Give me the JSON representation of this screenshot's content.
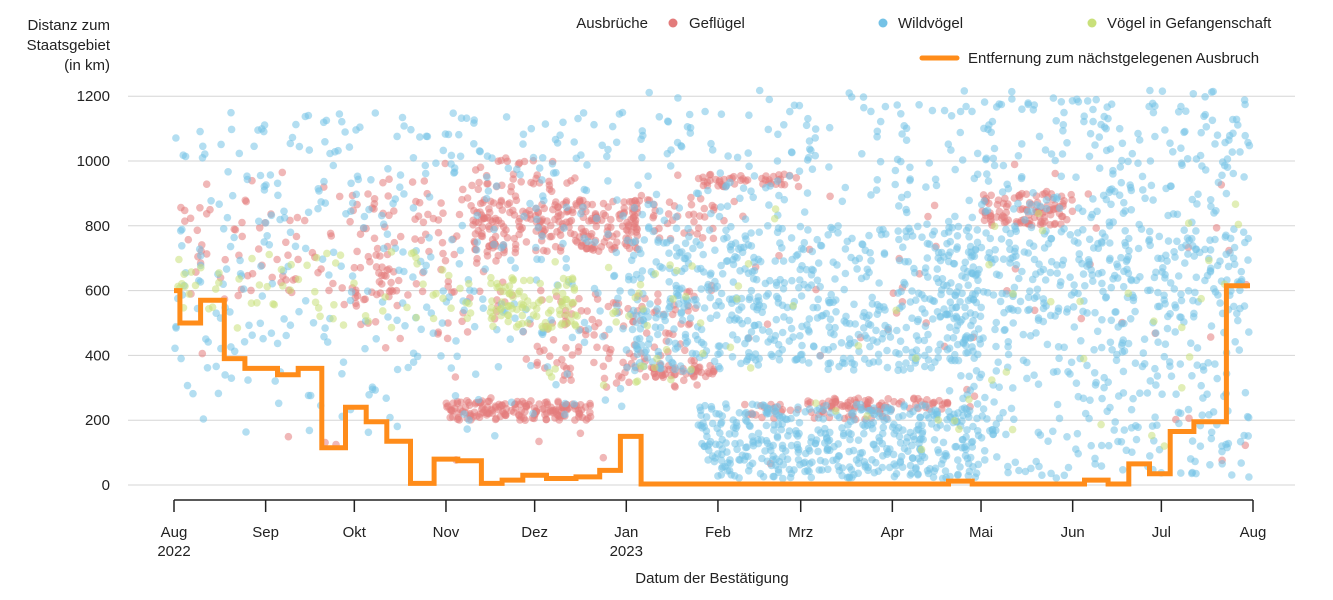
{
  "chart_data": {
    "type": "scatter",
    "ylabel_lines": [
      "Distanz zum",
      "Staatsgebiet",
      "(in km)"
    ],
    "xlabel": "Datum der Bestätigung",
    "ylim": [
      0,
      1250
    ],
    "yticks": [
      0,
      200,
      400,
      600,
      800,
      1000,
      1200
    ],
    "xlim": [
      "2022-08-01",
      "2023-08-01"
    ],
    "xticks": [
      {
        "date": "2022-08-01",
        "label": "Aug",
        "year": "2022"
      },
      {
        "date": "2022-09-01",
        "label": "Sep",
        "year": ""
      },
      {
        "date": "2022-10-01",
        "label": "Okt",
        "year": ""
      },
      {
        "date": "2022-11-01",
        "label": "Nov",
        "year": ""
      },
      {
        "date": "2022-12-01",
        "label": "Dez",
        "year": ""
      },
      {
        "date": "2023-01-01",
        "label": "Jan",
        "year": "2023"
      },
      {
        "date": "2023-02-01",
        "label": "Feb",
        "year": ""
      },
      {
        "date": "2023-03-01",
        "label": "Mrz",
        "year": ""
      },
      {
        "date": "2023-04-01",
        "label": "Apr",
        "year": ""
      },
      {
        "date": "2023-05-01",
        "label": "Mai",
        "year": ""
      },
      {
        "date": "2023-06-01",
        "label": "Jun",
        "year": ""
      },
      {
        "date": "2023-07-01",
        "label": "Jul",
        "year": ""
      },
      {
        "date": "2023-08-01",
        "label": "Aug",
        "year": ""
      }
    ],
    "grid": "horizontal",
    "legend": {
      "title": "Ausbrüche",
      "placement": "top-right",
      "items": [
        {
          "name": "Geflügel",
          "color": "#e37b7b",
          "marker": "dot"
        },
        {
          "name": "Wildvögel",
          "color": "#74c2e6",
          "marker": "dot"
        },
        {
          "name": "Vögel in Gefangenschaft",
          "color": "#c9e07a",
          "marker": "dot"
        },
        {
          "name": "Entfernung zum nächstgelegenen Ausbruch",
          "color": "#ff8c1a",
          "marker": "line"
        }
      ]
    },
    "line_series": {
      "name": "Entfernung zum nächstgelegenen Ausbruch",
      "color": "#ff8c1a",
      "type": "step",
      "points": [
        [
          "2022-08-01",
          600
        ],
        [
          "2022-08-03",
          500
        ],
        [
          "2022-08-10",
          570
        ],
        [
          "2022-08-18",
          390
        ],
        [
          "2022-08-25",
          360
        ],
        [
          "2022-09-05",
          340
        ],
        [
          "2022-09-12",
          360
        ],
        [
          "2022-09-20",
          115
        ],
        [
          "2022-09-28",
          240
        ],
        [
          "2022-10-05",
          195
        ],
        [
          "2022-10-12",
          135
        ],
        [
          "2022-10-20",
          5
        ],
        [
          "2022-10-28",
          80
        ],
        [
          "2022-11-05",
          75
        ],
        [
          "2022-11-13",
          5
        ],
        [
          "2022-11-20",
          15
        ],
        [
          "2022-11-27",
          30
        ],
        [
          "2022-12-05",
          20
        ],
        [
          "2022-12-15",
          25
        ],
        [
          "2022-12-23",
          45
        ],
        [
          "2022-12-30",
          150
        ],
        [
          "2023-01-06",
          3
        ],
        [
          "2023-04-20",
          12
        ],
        [
          "2023-04-28",
          3
        ],
        [
          "2023-06-05",
          15
        ],
        [
          "2023-06-13",
          3
        ],
        [
          "2023-06-20",
          65
        ],
        [
          "2023-06-27",
          35
        ],
        [
          "2023-07-04",
          165
        ],
        [
          "2023-07-12",
          195
        ],
        [
          "2023-07-23",
          615
        ],
        [
          "2023-07-31",
          615
        ]
      ]
    },
    "point_series": [
      {
        "name": "Geflügel",
        "color": "#e37b7b",
        "clusters": [
          {
            "start": "2022-08-01",
            "end": "2022-10-15",
            "ymin": 550,
            "ymax": 900,
            "n": 90
          },
          {
            "start": "2022-10-01",
            "end": "2022-11-25",
            "ymin": 450,
            "ymax": 950,
            "n": 110
          },
          {
            "start": "2022-11-01",
            "end": "2022-12-20",
            "ymin": 200,
            "ymax": 260,
            "n": 160
          },
          {
            "start": "2022-11-10",
            "end": "2023-01-05",
            "ymin": 720,
            "ymax": 880,
            "n": 230
          },
          {
            "start": "2022-11-10",
            "end": "2022-12-15",
            "ymin": 860,
            "ymax": 1010,
            "n": 35
          },
          {
            "start": "2022-12-01",
            "end": "2023-01-25",
            "ymin": 300,
            "ymax": 600,
            "n": 120
          },
          {
            "start": "2023-01-01",
            "end": "2023-01-31",
            "ymin": 760,
            "ymax": 900,
            "n": 50
          },
          {
            "start": "2023-01-10",
            "end": "2023-01-31",
            "ymin": 330,
            "ymax": 370,
            "n": 40
          },
          {
            "start": "2023-01-25",
            "end": "2023-03-01",
            "ymin": 920,
            "ymax": 960,
            "n": 45
          },
          {
            "start": "2023-02-10",
            "end": "2023-03-30",
            "ymin": 200,
            "ymax": 260,
            "n": 55
          },
          {
            "start": "2023-03-10",
            "end": "2023-04-20",
            "ymin": 230,
            "ymax": 270,
            "n": 55
          },
          {
            "start": "2023-05-01",
            "end": "2023-06-01",
            "ymin": 800,
            "ymax": 900,
            "n": 100
          },
          {
            "start": "2022-08-01",
            "end": "2023-07-31",
            "ymin": 50,
            "ymax": 1000,
            "n": 90
          }
        ]
      },
      {
        "name": "Wildvögel",
        "color": "#74c2e6",
        "clusters": [
          {
            "start": "2022-08-01",
            "end": "2022-12-31",
            "ymin": 450,
            "ymax": 1150,
            "n": 330
          },
          {
            "start": "2022-08-01",
            "end": "2022-12-31",
            "ymin": 150,
            "ymax": 450,
            "n": 70
          },
          {
            "start": "2023-01-01",
            "end": "2023-04-30",
            "ymin": 350,
            "ymax": 800,
            "n": 620
          },
          {
            "start": "2023-01-25",
            "end": "2023-04-30",
            "ymin": 20,
            "ymax": 250,
            "n": 440
          },
          {
            "start": "2023-01-01",
            "end": "2023-04-30",
            "ymin": 800,
            "ymax": 1220,
            "n": 150
          },
          {
            "start": "2023-04-20",
            "end": "2023-07-31",
            "ymin": 500,
            "ymax": 800,
            "n": 330
          },
          {
            "start": "2023-04-20",
            "end": "2023-07-31",
            "ymin": 20,
            "ymax": 500,
            "n": 250
          },
          {
            "start": "2023-05-01",
            "end": "2023-07-31",
            "ymin": 800,
            "ymax": 1220,
            "n": 200
          }
        ]
      },
      {
        "name": "Vögel in Gefangenschaft",
        "color": "#c9e07a",
        "clusters": [
          {
            "start": "2022-08-01",
            "end": "2022-11-10",
            "ymin": 480,
            "ymax": 720,
            "n": 70
          },
          {
            "start": "2022-11-15",
            "end": "2022-12-15",
            "ymin": 480,
            "ymax": 640,
            "n": 90
          },
          {
            "start": "2022-12-01",
            "end": "2023-02-15",
            "ymin": 300,
            "ymax": 700,
            "n": 40
          },
          {
            "start": "2023-02-01",
            "end": "2023-07-31",
            "ymin": 100,
            "ymax": 900,
            "n": 40
          }
        ]
      }
    ]
  }
}
